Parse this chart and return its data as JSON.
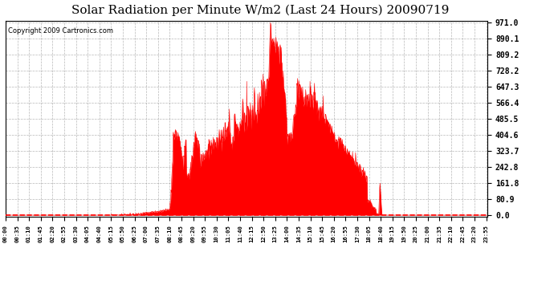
{
  "title": "Solar Radiation per Minute W/m2 (Last 24 Hours) 20090719",
  "copyright": "Copyright 2009 Cartronics.com",
  "title_fontsize": 11,
  "copyright_fontsize": 6,
  "background_color": "#ffffff",
  "fill_color": "#ff0000",
  "line_color": "#ff0000",
  "dashed_line_color": "#ff0000",
  "grid_color": "#888888",
  "y_ticks": [
    0.0,
    80.9,
    161.8,
    242.8,
    323.7,
    404.6,
    485.5,
    566.4,
    647.3,
    728.2,
    809.2,
    890.1,
    971.0
  ],
  "ymax": 971.0,
  "ymin": 0.0,
  "n_points": 1440,
  "tick_step": 35
}
